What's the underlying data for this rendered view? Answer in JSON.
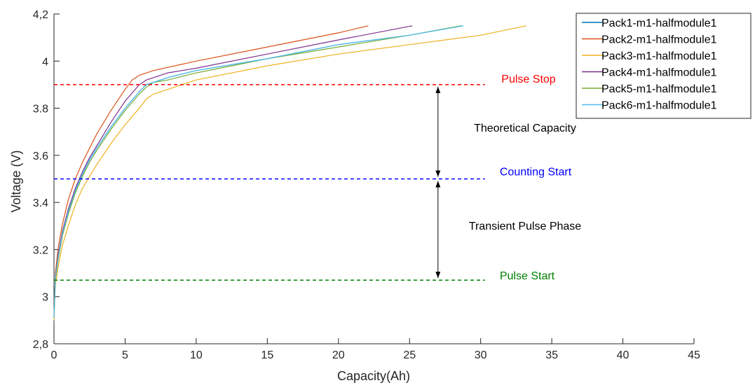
{
  "chart_data": {
    "type": "line",
    "xlabel": "Capacity(Ah)",
    "ylabel": "Voltage (V)",
    "xlim": [
      0,
      45
    ],
    "ylim": [
      2.8,
      4.2
    ],
    "xticks": [
      "0",
      "5",
      "10",
      "15",
      "20",
      "25",
      "30",
      "35",
      "40",
      "45"
    ],
    "yticks": [
      "2,8",
      "3",
      "3.2",
      "3.4",
      "3.6",
      "3.8",
      "4",
      "4,2"
    ],
    "grid": false,
    "legend_position": "top-right",
    "series": [
      {
        "name": "Pack1-m1-halfmodule1",
        "color": "#0072BD",
        "points": [
          [
            0,
            2.91
          ],
          [
            0.1,
            3.08
          ],
          [
            0.3,
            3.17
          ],
          [
            0.6,
            3.27
          ],
          [
            1,
            3.36
          ],
          [
            1.5,
            3.45
          ],
          [
            2,
            3.52
          ],
          [
            2.5,
            3.58
          ],
          [
            3,
            3.63
          ],
          [
            4,
            3.72
          ],
          [
            5,
            3.8
          ],
          [
            6,
            3.87
          ],
          [
            6.5,
            3.9
          ],
          [
            7,
            3.91
          ],
          [
            8,
            3.93
          ],
          [
            10,
            3.96
          ],
          [
            15,
            4.01
          ],
          [
            20,
            4.07
          ],
          [
            25,
            4.11
          ],
          [
            28.7,
            4.15
          ]
        ]
      },
      {
        "name": "Pack2-m1-halfmodule1",
        "color": "#D95319",
        "points": [
          [
            0,
            2.92
          ],
          [
            0.1,
            3.1
          ],
          [
            0.3,
            3.21
          ],
          [
            0.6,
            3.31
          ],
          [
            1,
            3.41
          ],
          [
            1.5,
            3.5
          ],
          [
            2,
            3.57
          ],
          [
            2.5,
            3.63
          ],
          [
            3,
            3.69
          ],
          [
            4,
            3.79
          ],
          [
            5,
            3.88
          ],
          [
            5.5,
            3.92
          ],
          [
            6,
            3.94
          ],
          [
            7,
            3.96
          ],
          [
            10,
            4.0
          ],
          [
            15,
            4.06
          ],
          [
            20,
            4.12
          ],
          [
            22.1,
            4.15
          ]
        ]
      },
      {
        "name": "Pack3-m1-halfmodule1",
        "color": "#EDB120",
        "points": [
          [
            0,
            2.9
          ],
          [
            0.1,
            3.05
          ],
          [
            0.3,
            3.13
          ],
          [
            0.6,
            3.22
          ],
          [
            1,
            3.3
          ],
          [
            1.5,
            3.39
          ],
          [
            2,
            3.46
          ],
          [
            3,
            3.56
          ],
          [
            4,
            3.65
          ],
          [
            5,
            3.73
          ],
          [
            6,
            3.8
          ],
          [
            6.5,
            3.84
          ],
          [
            7,
            3.86
          ],
          [
            8,
            3.88
          ],
          [
            10,
            3.92
          ],
          [
            15,
            3.98
          ],
          [
            20,
            4.03
          ],
          [
            25,
            4.07
          ],
          [
            30,
            4.11
          ],
          [
            33.2,
            4.15
          ]
        ]
      },
      {
        "name": "Pack4-m1-halfmodule1",
        "color": "#7E2F8E",
        "points": [
          [
            0,
            2.91
          ],
          [
            0.1,
            3.08
          ],
          [
            0.3,
            3.18
          ],
          [
            0.6,
            3.28
          ],
          [
            1,
            3.37
          ],
          [
            1.5,
            3.46
          ],
          [
            2,
            3.53
          ],
          [
            2.5,
            3.59
          ],
          [
            3,
            3.64
          ],
          [
            4,
            3.74
          ],
          [
            5,
            3.83
          ],
          [
            6,
            3.9
          ],
          [
            6.5,
            3.92
          ],
          [
            7,
            3.93
          ],
          [
            8,
            3.95
          ],
          [
            10,
            3.97
          ],
          [
            15,
            4.03
          ],
          [
            20,
            4.09
          ],
          [
            25.2,
            4.15
          ]
        ]
      },
      {
        "name": "Pack5-m1-halfmodule1",
        "color": "#77AC30",
        "points": [
          [
            0,
            2.91
          ],
          [
            0.1,
            3.07
          ],
          [
            0.3,
            3.16
          ],
          [
            0.6,
            3.26
          ],
          [
            1,
            3.35
          ],
          [
            1.5,
            3.44
          ],
          [
            2,
            3.51
          ],
          [
            2.5,
            3.57
          ],
          [
            3,
            3.62
          ],
          [
            4,
            3.71
          ],
          [
            5,
            3.79
          ],
          [
            6,
            3.86
          ],
          [
            6.5,
            3.89
          ],
          [
            7,
            3.91
          ],
          [
            8,
            3.92
          ],
          [
            10,
            3.95
          ],
          [
            15,
            4.01
          ],
          [
            20,
            4.06
          ],
          [
            25,
            4.11
          ],
          [
            28.6,
            4.15
          ]
        ]
      },
      {
        "name": "Pack6-m1-halfmodule1",
        "color": "#4DBEEE",
        "points": [
          [
            0,
            2.91
          ],
          [
            0.1,
            3.08
          ],
          [
            0.3,
            3.17
          ],
          [
            0.6,
            3.27
          ],
          [
            1,
            3.36
          ],
          [
            1.5,
            3.45
          ],
          [
            2,
            3.52
          ],
          [
            2.5,
            3.58
          ],
          [
            3,
            3.63
          ],
          [
            4,
            3.72
          ],
          [
            5,
            3.8
          ],
          [
            6,
            3.87
          ],
          [
            6.5,
            3.9
          ],
          [
            7,
            3.91
          ],
          [
            8,
            3.93
          ],
          [
            10,
            3.96
          ],
          [
            15,
            4.01
          ],
          [
            20,
            4.07
          ],
          [
            25,
            4.11
          ],
          [
            28.8,
            4.15
          ]
        ]
      }
    ],
    "thresholds": [
      {
        "label": "Pulse Stop",
        "y": 3.9,
        "x_end": 30.3,
        "color": "#FF0000"
      },
      {
        "label": "Counting Start",
        "y": 3.5,
        "x_end": 30.3,
        "color": "#0000FF"
      },
      {
        "label": "Pulse Start",
        "y": 3.07,
        "x_end": 30.3,
        "color": "#008000"
      }
    ],
    "arrows": [
      {
        "label": "Theoretical Capacity",
        "x": 27,
        "y_from": 3.9,
        "y_to": 3.5
      },
      {
        "label": "Transient Pulse Phase",
        "x": 27,
        "y_from": 3.5,
        "y_to": 3.07
      }
    ]
  }
}
